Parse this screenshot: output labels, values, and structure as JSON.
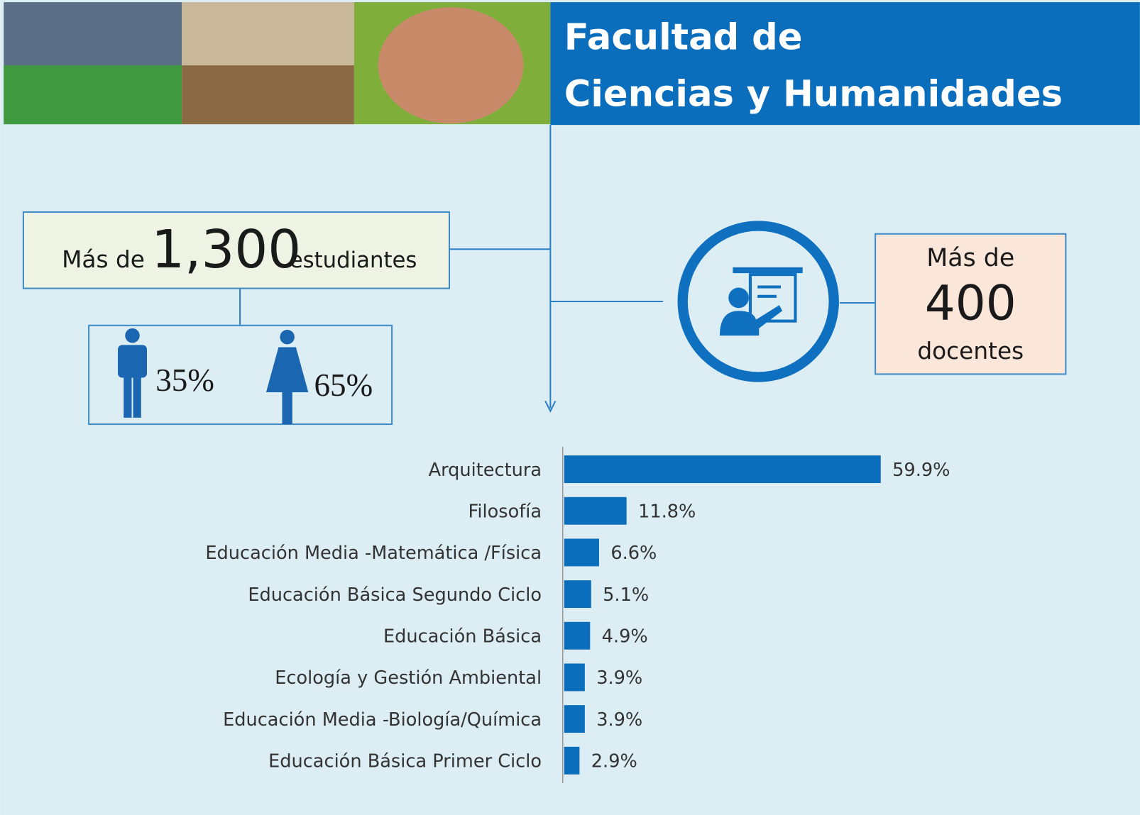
{
  "header": {
    "title": [
      "Facultad de",
      "Ciencias y Humanidades"
    ]
  },
  "students": {
    "prefix": "Más de",
    "number": "1,300",
    "suffix": "estudiantes",
    "male": "35%",
    "female": "65%"
  },
  "teachers": {
    "prefix": "Más de",
    "number": "400",
    "suffix": "docentes"
  },
  "chart_data": {
    "type": "bar",
    "orientation": "horizontal",
    "color": "#0a6ebd",
    "categories": [
      "Arquitectura",
      "Filosofía",
      "Educación Media -Matemática /Física",
      "Educación Básica Segundo Ciclo",
      "Educación Básica",
      "Ecología y Gestión Ambiental",
      "Educación Media -Biología/Química",
      "Educación Básica Primer Ciclo"
    ],
    "values": [
      59.9,
      11.8,
      6.6,
      5.1,
      4.9,
      3.9,
      3.9,
      2.9
    ],
    "value_labels": [
      "59.9%",
      "11.8%",
      "6.6%",
      "5.1%",
      "4.9%",
      "3.9%",
      "3.9%",
      "2.9%"
    ]
  }
}
